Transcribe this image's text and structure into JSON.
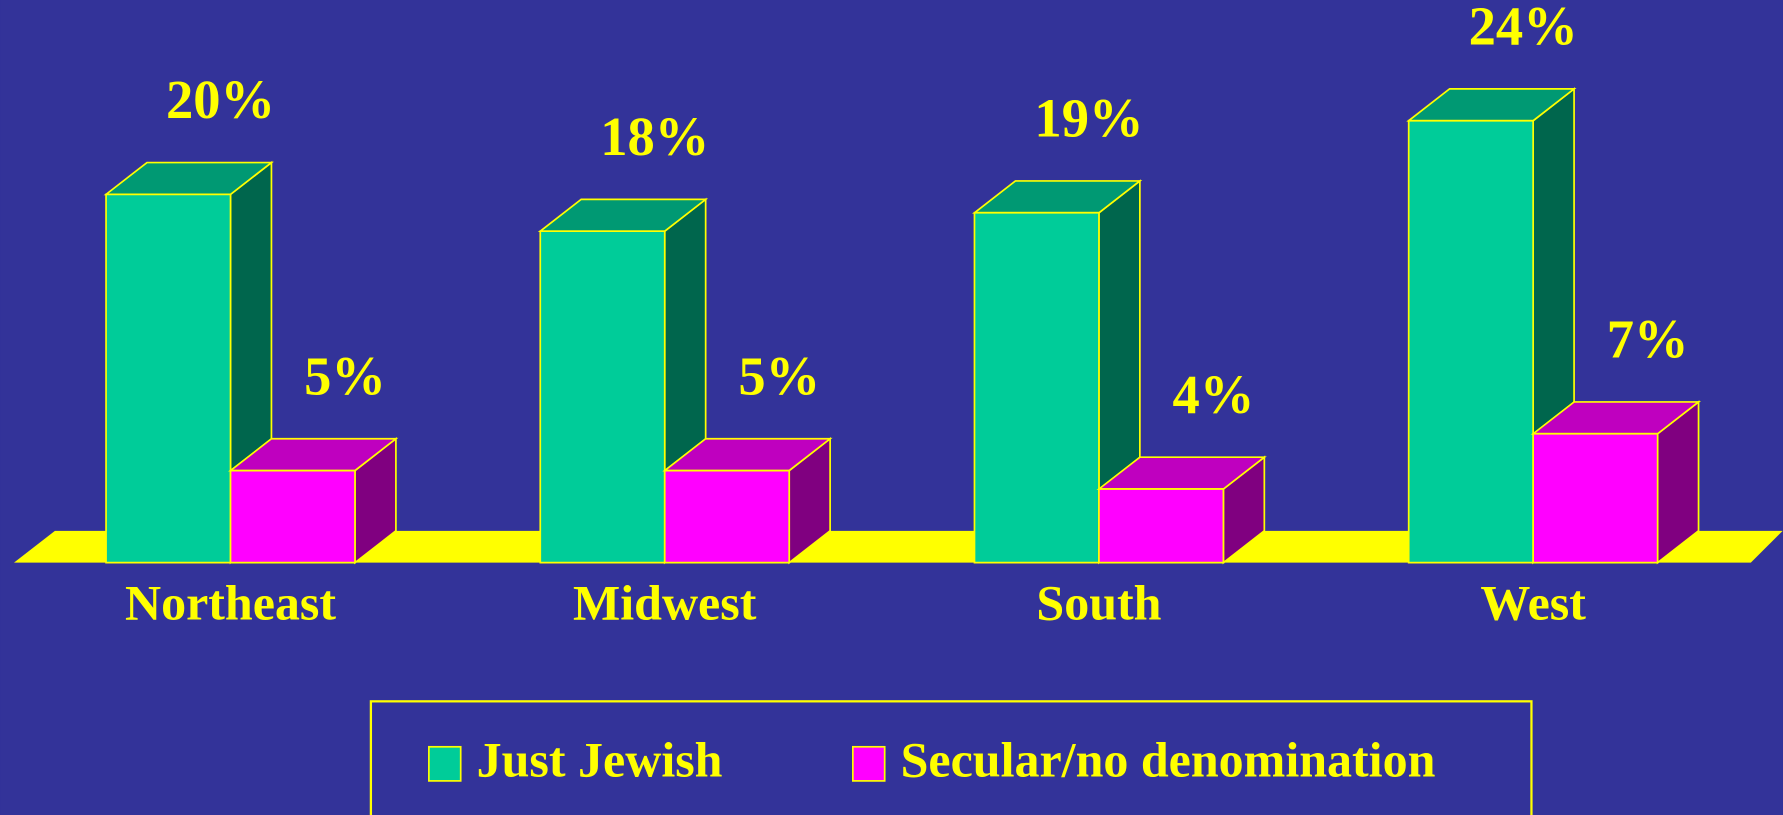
{
  "chart_data": {
    "type": "bar3d",
    "categories": [
      "Northeast",
      "Midwest",
      "South",
      "West"
    ],
    "series": [
      {
        "name": "Just Jewish",
        "color": "#00cc99",
        "values": [
          20,
          18,
          19,
          24
        ],
        "value_labels": [
          "20%",
          "18%",
          "19%",
          "24%"
        ]
      },
      {
        "name": "Secular/no denomination",
        "color": "#ff00ff",
        "values": [
          5,
          5,
          4,
          7
        ],
        "value_labels": [
          "5%",
          "5%",
          "4%",
          "7%"
        ]
      }
    ]
  }
}
